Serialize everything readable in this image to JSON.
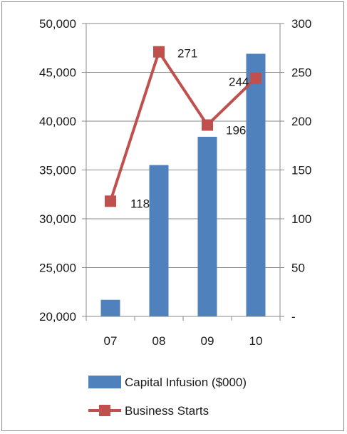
{
  "chart_data": {
    "type": "bar+line",
    "categories": [
      "07",
      "08",
      "09",
      "10"
    ],
    "series": [
      {
        "name": "Capital Infusion ($000)",
        "type": "bar",
        "axis": "left",
        "color": "#4f81bd",
        "values": [
          21700,
          35500,
          38400,
          46900
        ]
      },
      {
        "name": "Business Starts",
        "type": "line",
        "axis": "right",
        "color": "#c0504d",
        "values": [
          118,
          271,
          196,
          244
        ],
        "data_labels": [
          "118",
          "271",
          "196",
          "244"
        ]
      }
    ],
    "y_left": {
      "range": [
        20000,
        50000
      ],
      "ticks": [
        20000,
        25000,
        30000,
        35000,
        40000,
        45000,
        50000
      ],
      "tick_labels": [
        "20,000",
        "25,000",
        "30,000",
        "35,000",
        "40,000",
        "45,000",
        "50,000"
      ]
    },
    "y_right": {
      "range": [
        0,
        300
      ],
      "ticks": [
        0,
        50,
        100,
        150,
        200,
        250,
        300
      ],
      "tick_labels": [
        "-",
        "50",
        "100",
        "150",
        "200",
        "250",
        "300"
      ]
    },
    "grid": true,
    "legend_position": "bottom",
    "legend": [
      "Capital Infusion ($000)",
      "Business Starts"
    ]
  }
}
